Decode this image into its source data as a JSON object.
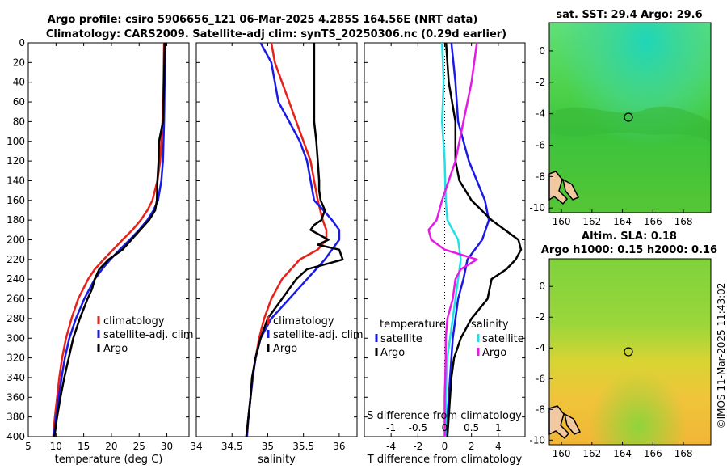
{
  "figure": {
    "title_line1": "Argo profile: csiro 5906656_121 06-Mar-2025 4.285S 164.56E (NRT data)",
    "title_line2": "Climatology: CARS2009. Satellite-adj clim: synTS_20250306.nc (0.29d earlier)",
    "side_label": "©IMOS 11-Mar-2025 11:43:02",
    "colors": {
      "climatology": "#e8201a",
      "satellite": "#1a1ae6",
      "argo": "#000000",
      "sal_satellite": "#22e0e6",
      "sal_argo": "#e61ae6"
    }
  },
  "chart_data": [
    {
      "type": "line",
      "id": "temperature",
      "xlabel": "temperature (deg C)",
      "ylabel": "",
      "xlim": [
        5,
        34
      ],
      "ylim": [
        400,
        0
      ],
      "xticks": [
        5,
        10,
        15,
        20,
        25,
        30
      ],
      "yticks": [
        0,
        20,
        40,
        60,
        80,
        100,
        120,
        140,
        160,
        180,
        200,
        220,
        240,
        260,
        280,
        300,
        320,
        340,
        360,
        380,
        400
      ],
      "legend": [
        "climatology",
        "satellite-adj. clim",
        "Argo"
      ],
      "series": [
        {
          "name": "climatology",
          "depth": [
            0,
            40,
            80,
            120,
            140,
            160,
            170,
            180,
            190,
            200,
            210,
            220,
            230,
            240,
            260,
            280,
            300,
            320,
            340,
            360,
            380,
            400
          ],
          "values": [
            29.5,
            29.4,
            29.2,
            28.8,
            28.3,
            27.4,
            26.5,
            25.3,
            23.8,
            22.0,
            20.3,
            18.6,
            17.0,
            15.8,
            14.0,
            12.8,
            11.8,
            11.1,
            10.6,
            10.2,
            9.8,
            9.5
          ]
        },
        {
          "name": "satellite-adj. clim",
          "depth": [
            0,
            40,
            80,
            120,
            140,
            160,
            170,
            180,
            190,
            200,
            210,
            220,
            230,
            240,
            260,
            280,
            300,
            320,
            340,
            360,
            380,
            400
          ],
          "values": [
            29.7,
            29.6,
            29.5,
            29.3,
            29.0,
            28.4,
            27.6,
            26.5,
            25.0,
            23.3,
            21.5,
            19.8,
            18.3,
            17.0,
            15.1,
            13.6,
            12.4,
            11.6,
            11.0,
            10.5,
            10.0,
            9.6
          ]
        },
        {
          "name": "Argo",
          "depth": [
            0,
            40,
            80,
            100,
            120,
            140,
            160,
            170,
            180,
            190,
            200,
            210,
            220,
            230,
            240,
            250,
            260,
            280,
            300,
            320,
            340,
            360,
            380,
            400
          ],
          "values": [
            29.6,
            29.5,
            29.3,
            28.6,
            28.5,
            28.3,
            28.2,
            27.9,
            26.8,
            25.2,
            23.6,
            22.0,
            19.5,
            17.8,
            17.0,
            16.5,
            15.7,
            14.3,
            13.1,
            12.3,
            11.5,
            10.8,
            10.2,
            9.7
          ]
        }
      ]
    },
    {
      "type": "line",
      "id": "salinity",
      "xlabel": "salinity",
      "ylabel": "",
      "xlim": [
        34,
        36.25
      ],
      "ylim": [
        400,
        0
      ],
      "xticks": [
        34,
        34.5,
        35,
        35.5,
        36
      ],
      "xticklabels": [
        "34",
        "34.5",
        "35",
        "35.5",
        "36"
      ],
      "legend": [
        "climatology",
        "satellite-adj. clim",
        "Argo"
      ],
      "series": [
        {
          "name": "climatology",
          "depth": [
            0,
            20,
            40,
            60,
            80,
            100,
            120,
            140,
            160,
            180,
            190,
            200,
            210,
            220,
            240,
            260,
            280,
            300,
            320,
            340,
            360,
            380,
            400
          ],
          "values": [
            35.05,
            35.1,
            35.2,
            35.3,
            35.4,
            35.5,
            35.6,
            35.65,
            35.7,
            35.77,
            35.82,
            35.82,
            35.7,
            35.45,
            35.2,
            35.05,
            34.95,
            34.88,
            34.83,
            34.79,
            34.76,
            34.73,
            34.7
          ]
        },
        {
          "name": "satellite-adj. clim",
          "depth": [
            0,
            20,
            40,
            60,
            80,
            100,
            120,
            140,
            160,
            170,
            180,
            190,
            200,
            210,
            220,
            240,
            260,
            280,
            300,
            320,
            340,
            360,
            380,
            400
          ],
          "values": [
            34.9,
            35.05,
            35.1,
            35.15,
            35.3,
            35.45,
            35.55,
            35.6,
            35.65,
            35.78,
            35.9,
            36.0,
            36.0,
            35.9,
            35.8,
            35.55,
            35.3,
            35.05,
            34.9,
            34.83,
            34.79,
            34.76,
            34.73,
            34.71
          ]
        },
        {
          "name": "Argo",
          "depth": [
            0,
            40,
            80,
            100,
            120,
            140,
            150,
            160,
            170,
            180,
            185,
            190,
            200,
            205,
            210,
            220,
            230,
            240,
            260,
            280,
            300,
            320,
            340,
            360,
            380,
            400
          ],
          "values": [
            35.65,
            35.65,
            35.65,
            35.68,
            35.7,
            35.72,
            35.72,
            35.74,
            35.8,
            35.75,
            35.65,
            35.6,
            35.85,
            35.7,
            36.0,
            36.05,
            35.55,
            35.4,
            35.2,
            35.0,
            34.9,
            34.83,
            34.78,
            34.76,
            34.73,
            34.7
          ]
        }
      ]
    },
    {
      "type": "line",
      "id": "difference",
      "xlabel": "T difference from climatology",
      "xlabel_top": "S difference from climatology",
      "xlim": [
        -6,
        6
      ],
      "ylim": [
        400,
        0
      ],
      "xticks": [
        -4,
        -2,
        0,
        2,
        4
      ],
      "s_xticks": [
        -1,
        -0.5,
        0,
        0.5,
        1
      ],
      "s_xticklabels": [
        "-1",
        "-0.5",
        "0",
        "0.5",
        "1"
      ],
      "s_scale": 4,
      "legend_temperature_title": "temperature",
      "legend_salinity_title": "salinity",
      "legend_temperature": [
        "satellite",
        "Argo"
      ],
      "legend_salinity": [
        "satellite",
        "Argo"
      ],
      "series": [
        {
          "name": "T satellite",
          "depth": [
            0,
            40,
            80,
            120,
            160,
            180,
            200,
            220,
            240,
            260,
            280,
            300,
            320,
            340,
            360,
            380,
            400
          ],
          "values": [
            0.5,
            0.8,
            1.0,
            1.8,
            3.0,
            3.3,
            2.8,
            1.7,
            1.4,
            1.0,
            0.8,
            0.6,
            0.5,
            0.4,
            0.3,
            0.2,
            0.1
          ]
        },
        {
          "name": "T Argo",
          "depth": [
            0,
            40,
            80,
            120,
            140,
            160,
            180,
            200,
            210,
            220,
            230,
            240,
            260,
            280,
            300,
            320,
            340,
            360,
            380,
            400
          ],
          "values": [
            0.1,
            0.3,
            0.8,
            0.8,
            1.1,
            2.0,
            3.5,
            5.5,
            5.7,
            5.3,
            4.6,
            3.5,
            3.2,
            2.0,
            1.2,
            0.7,
            0.5,
            0.4,
            0.3,
            0.2
          ]
        },
        {
          "name": "S satellite",
          "depth": [
            0,
            40,
            80,
            120,
            160,
            180,
            200,
            220,
            240,
            260,
            280,
            300,
            320,
            340,
            360,
            380,
            400
          ],
          "values": [
            -0.05,
            -0.02,
            -0.05,
            0.0,
            0.02,
            0.05,
            0.25,
            0.3,
            0.25,
            0.2,
            0.15,
            0.1,
            0.05,
            0.03,
            0.02,
            0.02,
            0.01
          ]
        },
        {
          "name": "S Argo",
          "depth": [
            0,
            40,
            80,
            120,
            160,
            180,
            190,
            200,
            210,
            220,
            230,
            240,
            260,
            280,
            300,
            320,
            340,
            360,
            380,
            400
          ],
          "values": [
            0.6,
            0.5,
            0.35,
            0.2,
            -0.05,
            -0.15,
            -0.3,
            -0.25,
            0.0,
            0.6,
            0.3,
            0.2,
            0.15,
            0.05,
            0.02,
            0.02,
            0.01,
            0.0,
            0.0,
            0.0
          ]
        }
      ]
    },
    {
      "type": "heatmap",
      "id": "sst_map",
      "title": "sat. SST: 29.4 Argo: 29.6",
      "xlim": [
        159.2,
        169.8
      ],
      "ylim": [
        -10.3,
        1.8
      ],
      "xticks": [
        160,
        162,
        164,
        166,
        168
      ],
      "yticks": [
        0,
        -2,
        -4,
        -6,
        -8,
        -10
      ],
      "marker": {
        "lon": 164.56,
        "lat": -4.285
      }
    },
    {
      "type": "heatmap",
      "id": "sla_map",
      "title_line1": "Altim. SLA: 0.18",
      "title_line2": "Argo h1000: 0.15 h2000: 0.16",
      "xlim": [
        159.2,
        169.8
      ],
      "ylim": [
        -10.3,
        1.8
      ],
      "xticks": [
        160,
        162,
        164,
        166,
        168
      ],
      "yticks": [
        0,
        -2,
        -4,
        -6,
        -8,
        -10
      ],
      "marker": {
        "lon": 164.56,
        "lat": -4.285
      }
    }
  ]
}
